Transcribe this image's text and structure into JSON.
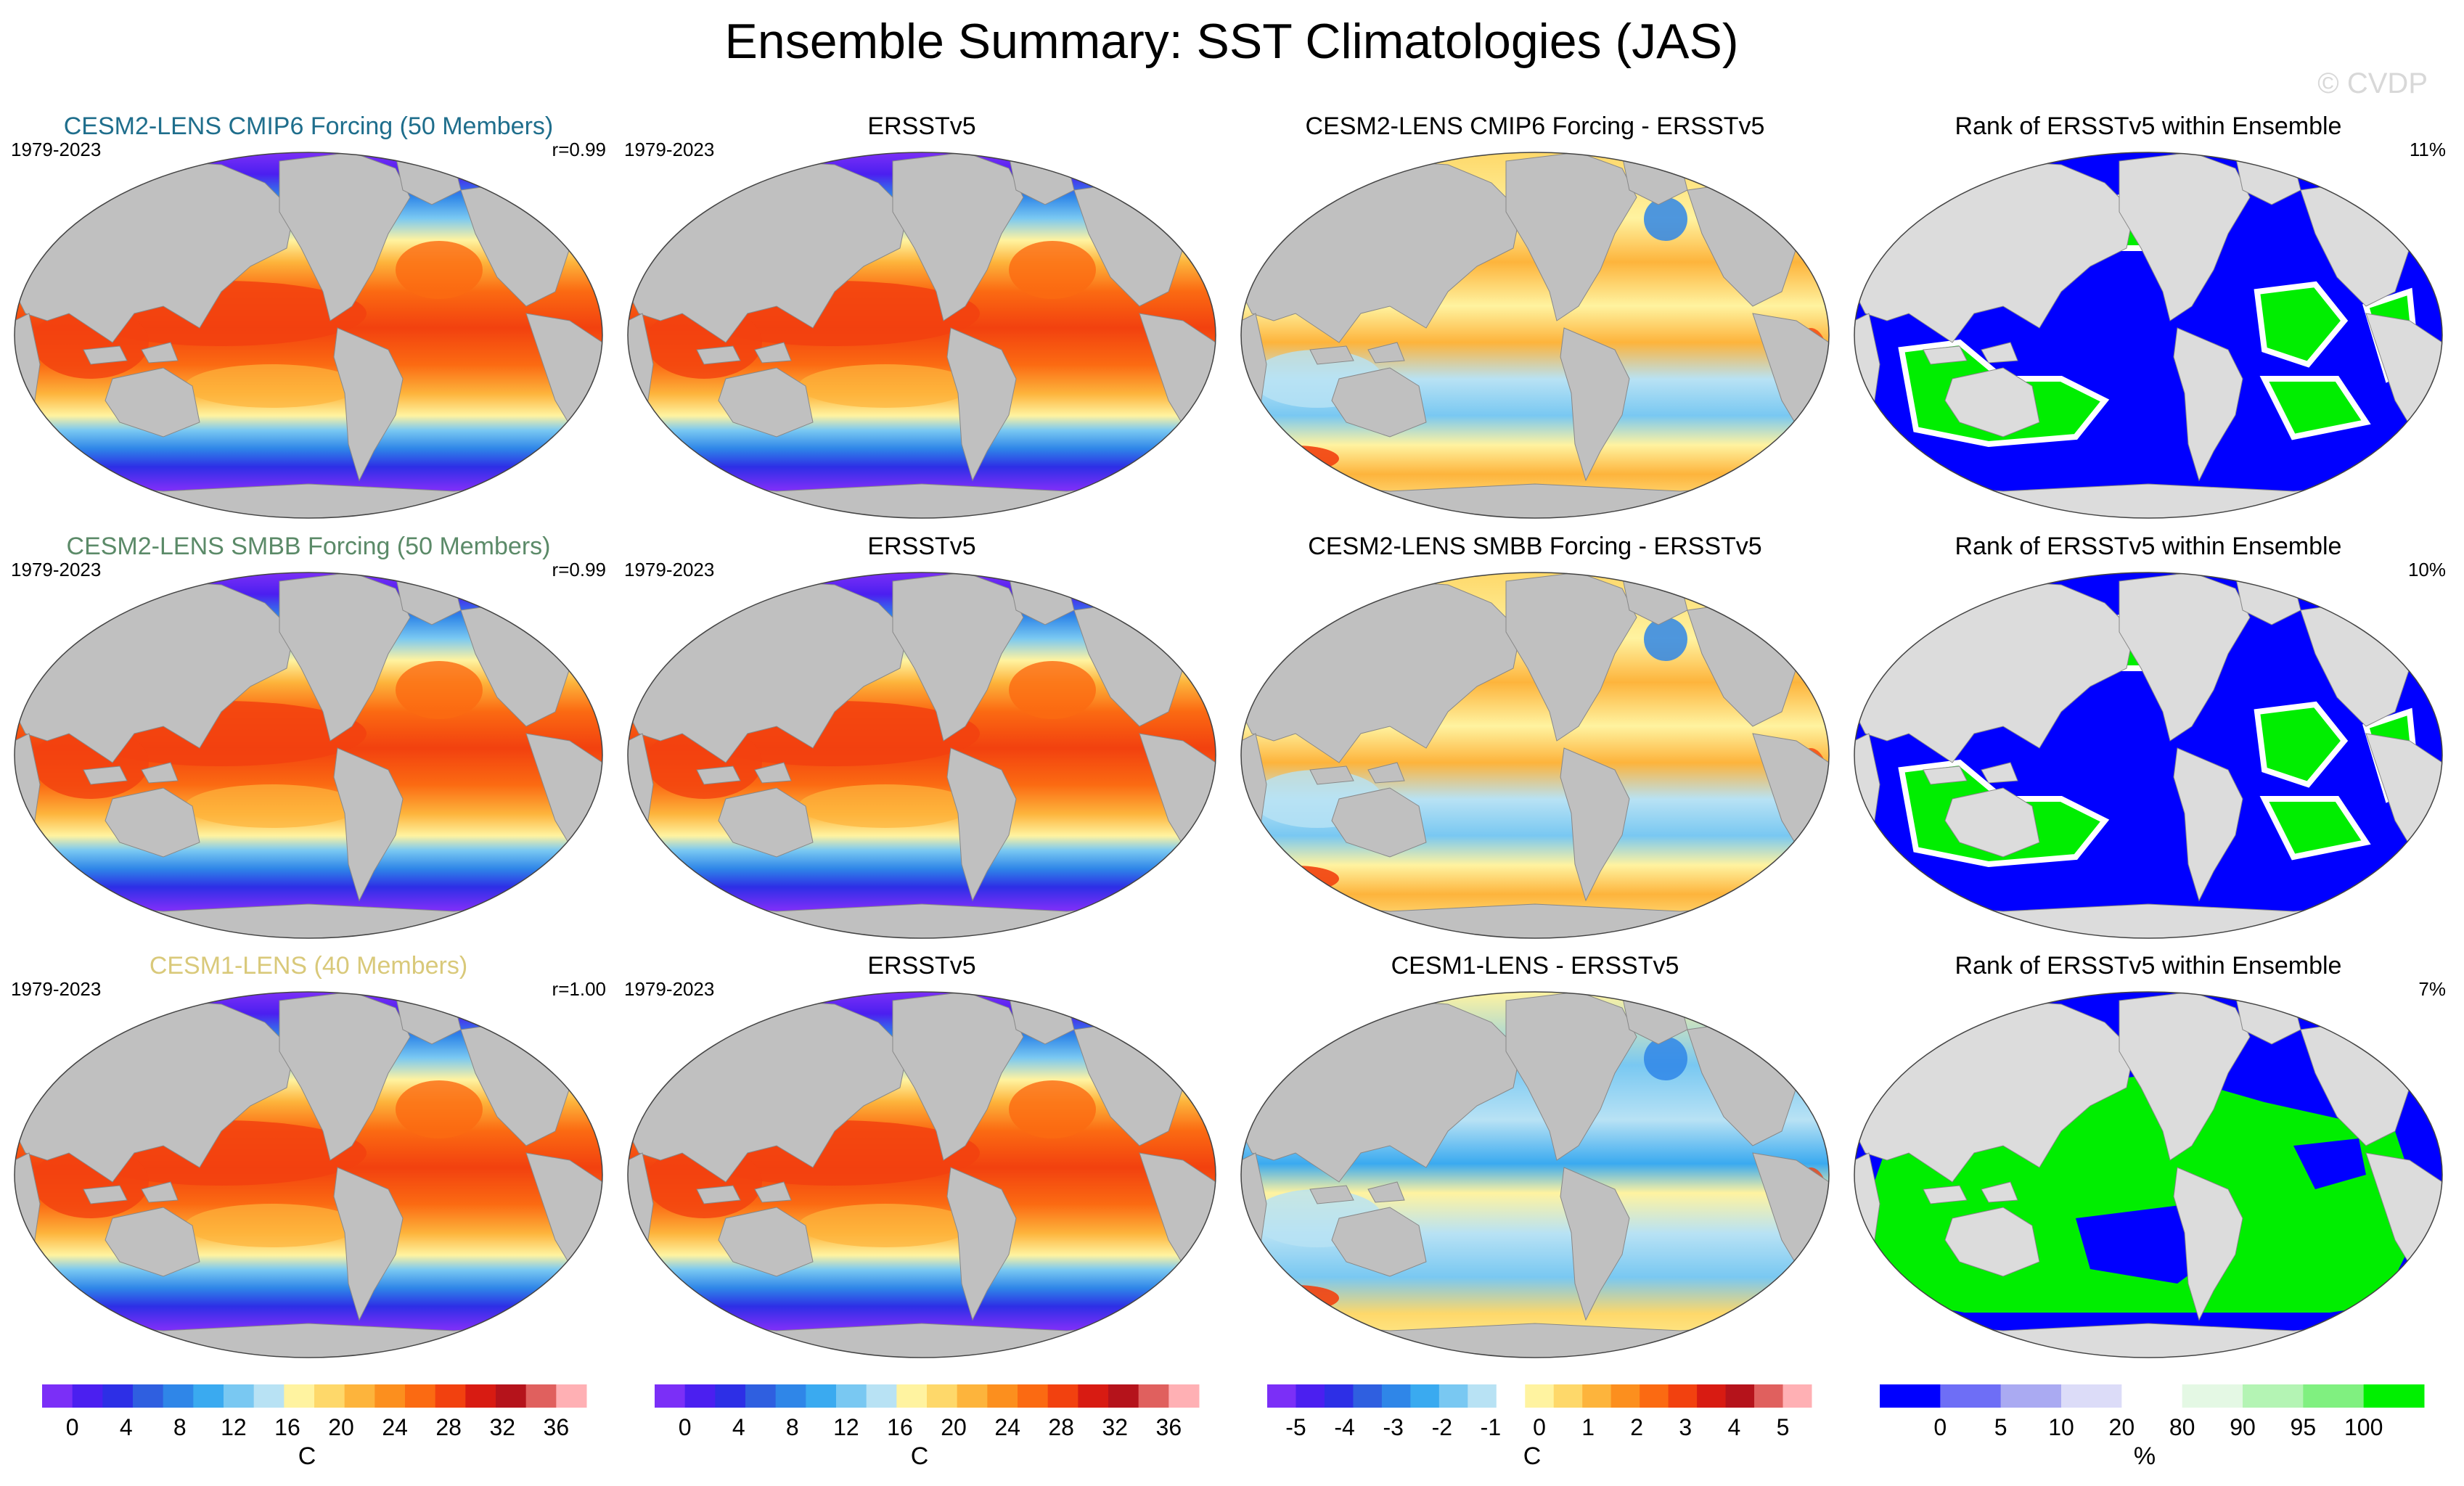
{
  "title": "Ensemble Summary: SST Climatologies (JAS)",
  "watermark": "© CVDP",
  "rows": [
    {
      "model_title": "CESM2-LENS CMIP6 Forcing (50 Members)",
      "model_title_color": "#1f6e8c",
      "period": "1979-2023",
      "r_label": "r=0.99",
      "obs_title": "ERSSTv5",
      "obs_period": "1979-2023",
      "diff_title": "CESM2-LENS CMIP6 Forcing - ERSSTv5",
      "rank_title": "Rank of ERSSTv5 within Ensemble",
      "rank_pct": "11%"
    },
    {
      "model_title": "CESM2-LENS SMBB Forcing (50 Members)",
      "model_title_color": "#5b8a68",
      "period": "1979-2023",
      "r_label": "r=0.99",
      "obs_title": "ERSSTv5",
      "obs_period": "1979-2023",
      "diff_title": "CESM2-LENS SMBB Forcing - ERSSTv5",
      "rank_title": "Rank of ERSSTv5 within Ensemble",
      "rank_pct": "10%"
    },
    {
      "model_title": "CESM1-LENS (40 Members)",
      "model_title_color": "#d9c97a",
      "period": "1979-2023",
      "r_label": "r=1.00",
      "obs_title": "ERSSTv5",
      "obs_period": "1979-2023",
      "diff_title": "CESM1-LENS - ERSSTv5",
      "rank_title": "Rank of ERSSTv5 within Ensemble",
      "rank_pct": "7%"
    }
  ],
  "colorbars": [
    {
      "unit": "C",
      "colors": [
        "#7b2ff7",
        "#4b1ff0",
        "#2d2fe6",
        "#2f5fe0",
        "#2f86e8",
        "#3aaaf0",
        "#79c8f2",
        "#b8e2f4",
        "#fff3a0",
        "#fed86a",
        "#fdb43c",
        "#fc8f1e",
        "#fb6a12",
        "#f2410f",
        "#d81b12",
        "#b5131b",
        "#e0605e",
        "#ffb0b4"
      ],
      "labels": [
        "0",
        "4",
        "8",
        "12",
        "16",
        "20",
        "24",
        "28",
        "32",
        "36"
      ]
    },
    {
      "unit": "C",
      "colors": [
        "#7b2ff7",
        "#4b1ff0",
        "#2d2fe6",
        "#2f5fe0",
        "#2f86e8",
        "#3aaaf0",
        "#79c8f2",
        "#b8e2f4",
        "#fff3a0",
        "#fed86a",
        "#fdb43c",
        "#fc8f1e",
        "#fb6a12",
        "#f2410f",
        "#d81b12",
        "#b5131b",
        "#e0605e",
        "#ffb0b4"
      ],
      "labels": [
        "0",
        "4",
        "8",
        "12",
        "16",
        "20",
        "24",
        "28",
        "32",
        "36"
      ]
    },
    {
      "unit": "C",
      "colors": [
        "#7b2ff7",
        "#4b1ff0",
        "#2d2fe6",
        "#2f5fe0",
        "#2f86e8",
        "#3aaaf0",
        "#79c8f2",
        "#b8e2f4",
        "#ffffff",
        "#fff3a0",
        "#fed86a",
        "#fdb43c",
        "#fc8f1e",
        "#fb6a12",
        "#f2410f",
        "#d81b12",
        "#b5131b",
        "#e0605e",
        "#ffb0b4"
      ],
      "labels": [
        "-5",
        "-4",
        "-3",
        "-2",
        "-1",
        "0",
        "1",
        "2",
        "3",
        "4",
        "5"
      ]
    },
    {
      "unit": "%",
      "colors": [
        "#0000ff",
        "#6e6ef6",
        "#aaaaf2",
        "#dcdcf8",
        "#ffffff",
        "#e4f8e4",
        "#b4f4b4",
        "#80f080",
        "#00f000"
      ],
      "labels": [
        "0",
        "5",
        "10",
        "20",
        "80",
        "90",
        "95",
        "100"
      ]
    }
  ],
  "palettes": {
    "land": "#c0c0c0",
    "ocean_edge": "#7b2ff7",
    "rank_low": "#0000ff",
    "rank_high": "#00ee00"
  }
}
